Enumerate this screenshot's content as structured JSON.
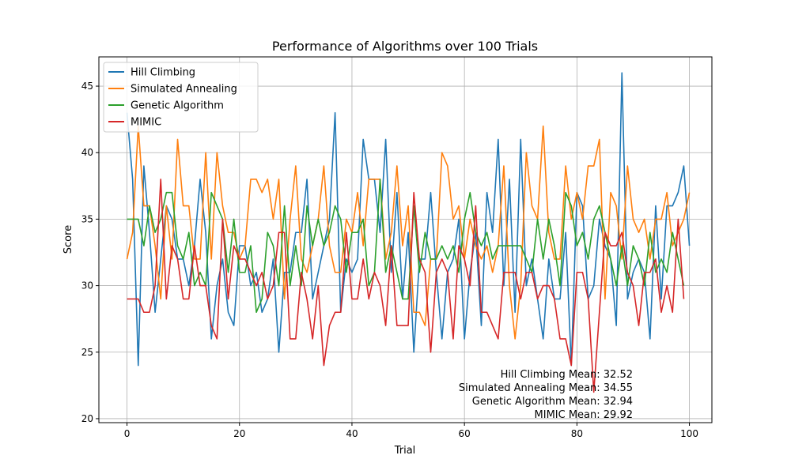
{
  "chart_data": {
    "type": "line",
    "title": "Performance of Algorithms over 100 Trials",
    "xlabel": "Trial",
    "ylabel": "Score",
    "xlim": [
      -5,
      104
    ],
    "ylim": [
      19.7,
      47.2
    ],
    "xticks": [
      0,
      20,
      40,
      60,
      80,
      100
    ],
    "yticks": [
      20,
      25,
      30,
      35,
      40,
      45
    ],
    "grid": true,
    "legend_position": "top-left",
    "series": [
      {
        "name": "Hill Climbing",
        "color": "#1f77b4",
        "values": [
          43,
          38,
          24,
          39,
          34,
          28,
          32,
          36,
          35,
          32,
          32,
          30,
          33,
          38,
          34,
          26,
          30,
          32,
          28,
          27,
          33,
          33,
          30,
          31,
          28,
          29,
          32,
          25,
          31,
          31,
          34,
          34,
          38,
          29,
          31,
          33,
          35,
          43,
          28,
          32,
          31,
          32,
          41,
          38,
          38,
          34,
          41,
          31,
          37,
          29,
          34,
          25,
          32,
          32,
          37,
          31,
          26,
          31,
          32,
          35,
          26,
          31,
          34,
          27,
          37,
          34,
          41,
          30,
          38,
          28,
          41,
          30,
          32,
          29,
          26,
          32,
          29,
          29,
          34,
          24,
          37,
          36,
          29,
          30,
          35,
          33,
          32,
          27,
          46,
          29,
          31,
          32,
          31,
          26,
          36,
          29,
          36,
          36,
          37,
          39,
          33
        ]
      },
      {
        "name": "Simulated Annealing",
        "color": "#ff7f0e",
        "values": [
          32,
          34,
          42,
          36,
          36,
          33,
          29,
          36,
          32,
          41,
          36,
          36,
          32,
          32,
          40,
          32,
          40,
          36,
          34,
          34,
          32,
          33,
          38,
          38,
          37,
          38,
          35,
          38,
          29,
          35,
          39,
          32,
          31,
          33,
          35,
          39,
          33,
          31,
          31,
          35,
          34,
          37,
          33,
          38,
          38,
          38,
          32,
          34,
          39,
          33,
          36,
          28,
          28,
          27,
          32,
          32,
          40,
          39,
          35,
          36,
          32,
          35,
          33,
          32,
          33,
          31,
          33,
          39,
          30,
          26,
          30,
          40,
          36,
          35,
          42,
          34,
          32,
          32,
          39,
          35,
          37,
          35,
          39,
          39,
          41,
          29,
          37,
          36,
          32,
          39,
          35,
          34,
          35,
          32,
          35,
          35,
          37,
          33,
          34,
          35,
          37
        ]
      },
      {
        "name": "Genetic Algorithm",
        "color": "#2ca02c",
        "values": [
          35,
          35,
          35,
          33,
          36,
          34,
          35,
          37,
          37,
          33,
          32,
          34,
          30,
          31,
          30,
          37,
          36,
          35,
          31,
          35,
          31,
          31,
          33,
          28,
          29,
          34,
          33,
          30,
          36,
          30,
          33,
          30,
          36,
          33,
          35,
          33,
          34,
          36,
          35,
          31,
          34,
          34,
          35,
          30,
          31,
          38,
          31,
          33,
          31,
          29,
          29,
          36,
          31,
          34,
          32,
          32,
          33,
          32,
          33,
          31,
          35,
          37,
          34,
          33,
          34,
          32,
          33,
          33,
          33,
          33,
          33,
          32,
          31,
          35,
          32,
          35,
          33,
          30,
          37,
          36,
          33,
          34,
          32,
          35,
          36,
          34,
          32,
          30,
          33,
          30,
          33,
          32,
          30,
          34,
          31,
          32,
          31,
          34,
          32,
          30
        ]
      },
      {
        "name": "MIMIC",
        "color": "#d62728",
        "values": [
          29,
          29,
          29,
          28,
          28,
          30,
          38,
          29,
          33,
          32,
          29,
          29,
          33,
          30,
          30,
          27,
          26,
          35,
          29,
          33,
          32,
          32,
          31,
          30,
          31,
          29,
          30,
          34,
          34,
          26,
          26,
          31,
          29,
          26,
          30,
          24,
          27,
          28,
          28,
          34,
          29,
          29,
          32,
          29,
          31,
          30,
          27,
          33,
          27,
          27,
          27,
          37,
          32,
          31,
          25,
          31,
          32,
          31,
          26,
          33,
          32,
          30,
          36,
          28,
          28,
          27,
          26,
          31,
          31,
          31,
          29,
          31,
          31,
          29,
          30,
          30,
          29,
          26,
          26,
          24,
          31,
          31,
          29,
          22,
          28,
          34,
          33,
          33,
          34,
          31,
          30,
          27,
          31,
          31,
          32,
          28,
          30,
          28,
          35,
          29
        ]
      }
    ],
    "annotations": [
      "Hill Climbing Mean: 32.52",
      "Simulated Annealing Mean: 34.55",
      "Genetic Algorithm Mean: 32.94",
      "MIMIC Mean: 29.92"
    ]
  }
}
